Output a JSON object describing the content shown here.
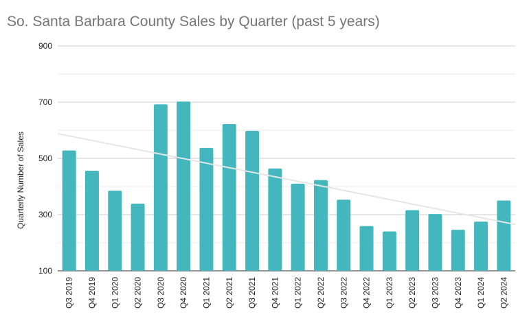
{
  "chart_data": {
    "type": "bar",
    "title": "So. Santa Barbara County Sales by Quarter (past 5 years)",
    "ylabel": "Quarterly Number of Sales",
    "xlabel": "",
    "ylim": [
      100,
      900
    ],
    "yticks": [
      "100",
      "300",
      "500",
      "700",
      "900"
    ],
    "grid": true,
    "legend": "none",
    "bar_color": "#43b7bd",
    "trend_color": "#e6e6e6",
    "categories": [
      "Q3 2019",
      "Q4 2019",
      "Q1 2020",
      "Q2 2020",
      "Q3 2020",
      "Q4 2020",
      "Q1 2021",
      "Q2 2021",
      "Q3 2021",
      "Q4 2021",
      "Q1 2022",
      "Q2 2022",
      "Q3 2022",
      "Q4 2022",
      "Q1 2023",
      "Q2 2023",
      "Q3 2023",
      "Q4 2023",
      "Q1 2024",
      "Q2 2024"
    ],
    "values": [
      528,
      456,
      385,
      339,
      692,
      702,
      537,
      622,
      598,
      464,
      410,
      423,
      353,
      259,
      240,
      316,
      302,
      246,
      275,
      350
    ],
    "trendline": {
      "start": 588,
      "end": 265
    }
  }
}
